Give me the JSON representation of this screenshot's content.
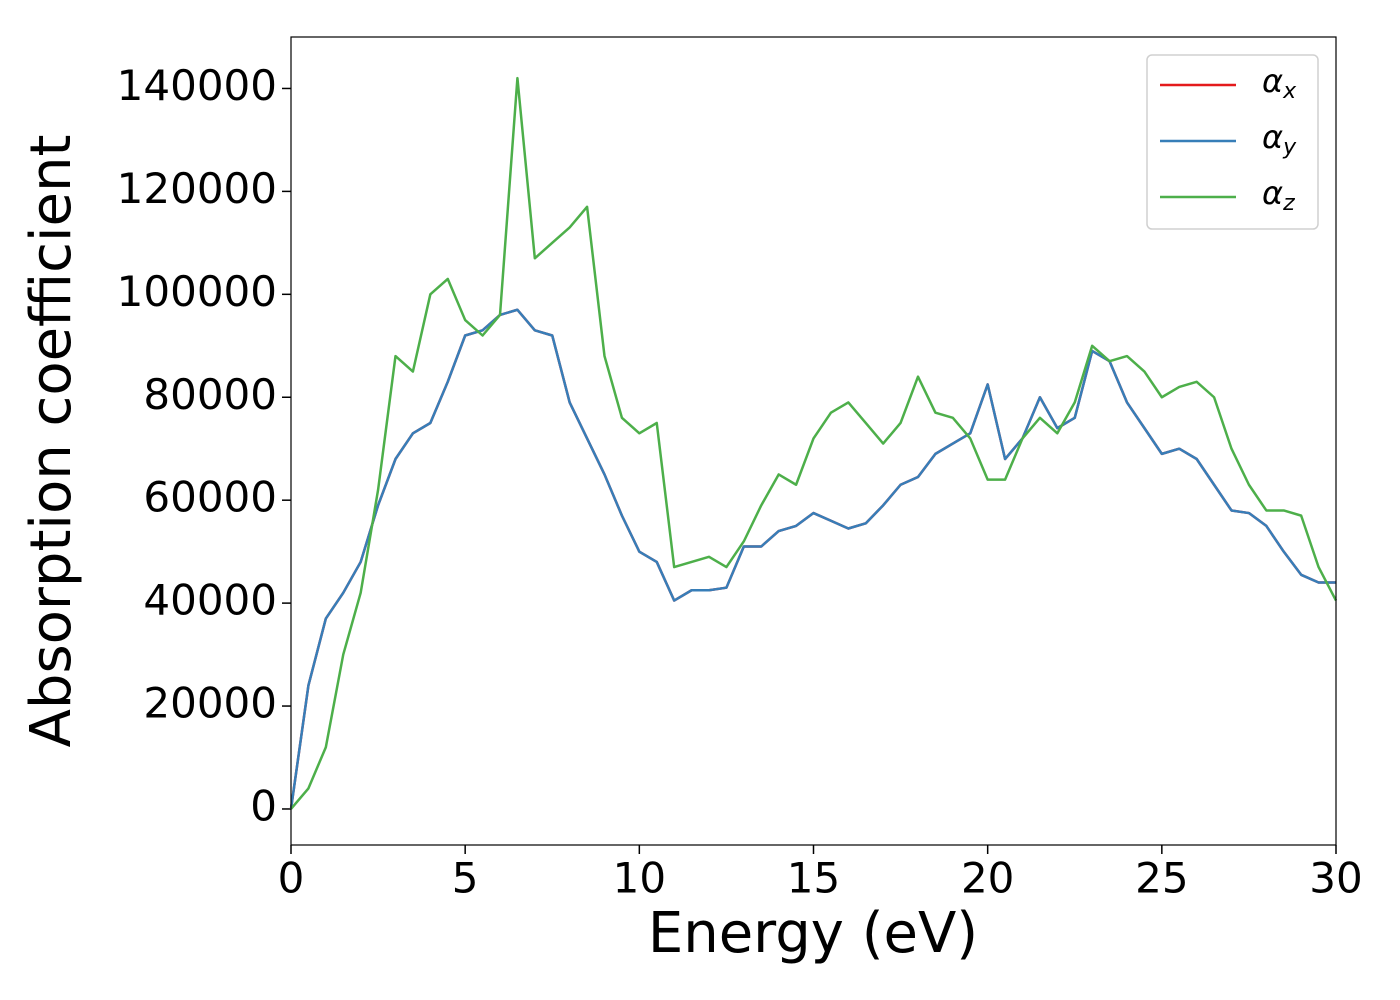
{
  "chart_data": {
    "type": "line",
    "xlabel": "Energy (eV)",
    "ylabel": "Absorption coefficient",
    "x": [
      0,
      0.5,
      1,
      1.5,
      2,
      2.5,
      3,
      3.5,
      4,
      4.5,
      5,
      5.5,
      6,
      6.5,
      7,
      7.5,
      8,
      8.5,
      9,
      9.5,
      10,
      10.5,
      11,
      11.5,
      12,
      12.5,
      13,
      13.5,
      14,
      14.5,
      15,
      15.5,
      16,
      16.5,
      17,
      17.5,
      18,
      18.5,
      19,
      19.5,
      20,
      20.5,
      21,
      21.5,
      22,
      22.5,
      23,
      23.5,
      24,
      24.5,
      25,
      25.5,
      26,
      26.5,
      27,
      27.5,
      28,
      28.5,
      29,
      29.5,
      30
    ],
    "series": [
      {
        "name": "αx",
        "color": "#e41a1c",
        "values": [
          0,
          24000,
          37000,
          42000,
          48000,
          59000,
          68000,
          73000,
          75000,
          83000,
          92000,
          93000,
          96000,
          97000,
          93000,
          92000,
          79000,
          72000,
          65000,
          57000,
          50000,
          48000,
          40500,
          42500,
          42500,
          43000,
          51000,
          51000,
          54000,
          55000,
          57500,
          56000,
          54500,
          55500,
          59000,
          63000,
          64500,
          69000,
          71000,
          73000,
          82500,
          68000,
          72000,
          80000,
          74000,
          76000,
          89000,
          87000,
          79000,
          74000,
          69000,
          70000,
          68000,
          63000,
          58000,
          57500,
          55000,
          50000,
          45500,
          44000,
          44000
        ]
      },
      {
        "name": "αy",
        "color": "#377eb8",
        "values": [
          0,
          24000,
          37000,
          42000,
          48000,
          59000,
          68000,
          73000,
          75000,
          83000,
          92000,
          93000,
          96000,
          97000,
          93000,
          92000,
          79000,
          72000,
          65000,
          57000,
          50000,
          48000,
          40500,
          42500,
          42500,
          43000,
          51000,
          51000,
          54000,
          55000,
          57500,
          56000,
          54500,
          55500,
          59000,
          63000,
          64500,
          69000,
          71000,
          73000,
          82500,
          68000,
          72000,
          80000,
          74000,
          76000,
          89000,
          87000,
          79000,
          74000,
          69000,
          70000,
          68000,
          63000,
          58000,
          57500,
          55000,
          50000,
          45500,
          44000,
          44000
        ]
      },
      {
        "name": "αz",
        "color": "#4daf4a",
        "values": [
          0,
          4000,
          12000,
          30000,
          42000,
          62000,
          88000,
          85000,
          100000,
          103000,
          95000,
          92000,
          96000,
          142000,
          107000,
          110000,
          113000,
          117000,
          88000,
          76000,
          73000,
          75000,
          47000,
          48000,
          49000,
          47000,
          52000,
          59000,
          65000,
          63000,
          72000,
          77000,
          79000,
          75000,
          71000,
          75000,
          84000,
          77000,
          76000,
          72000,
          64000,
          64000,
          72000,
          76000,
          73000,
          79000,
          90000,
          87000,
          88000,
          85000,
          80000,
          82000,
          83000,
          80000,
          70000,
          63000,
          58000,
          58000,
          57000,
          47000,
          40500
        ]
      }
    ],
    "xlim": [
      0,
      30
    ],
    "xticks": [
      0,
      5,
      10,
      15,
      20,
      25,
      30
    ],
    "ylim": [
      -7000,
      150000
    ],
    "yticks": [
      0,
      20000,
      40000,
      60000,
      80000,
      100000,
      120000,
      140000
    ],
    "legend": "upper right"
  }
}
